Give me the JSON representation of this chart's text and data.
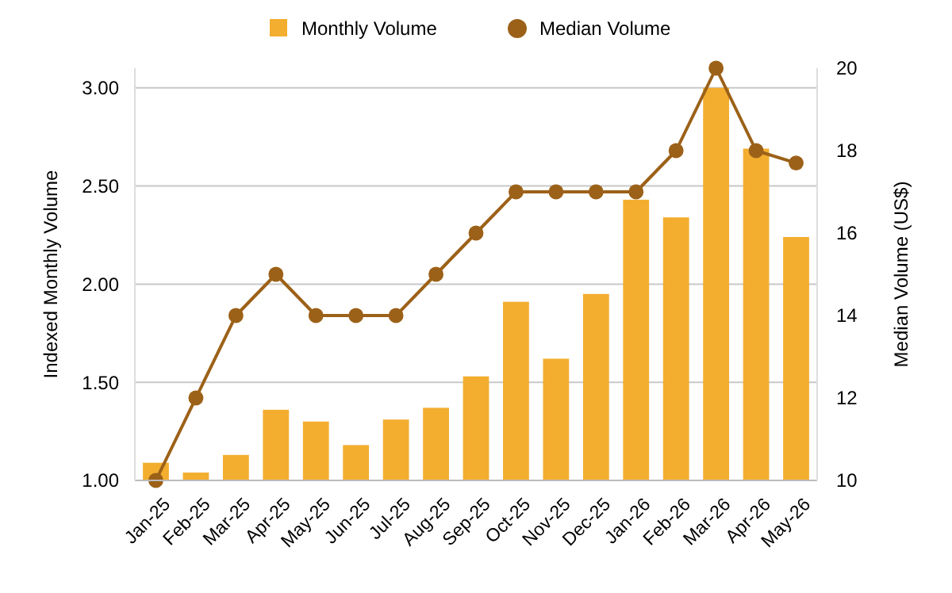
{
  "chart_data": {
    "type": "bar",
    "categories": [
      "Jan-25",
      "Feb-25",
      "Mar-25",
      "Apr-25",
      "May-25",
      "Jun-25",
      "Jul-25",
      "Aug-25",
      "Sep-25",
      "Oct-25",
      "Nov-25",
      "Dec-25",
      "Jan-26",
      "Feb-26",
      "Mar-26",
      "Apr-26",
      "May-26"
    ],
    "series": [
      {
        "name": "Monthly Volume",
        "color": "#f3ae2f",
        "values": [
          1.09,
          1.04,
          1.13,
          1.36,
          1.3,
          1.18,
          1.31,
          1.37,
          1.53,
          1.91,
          1.62,
          1.95,
          2.43,
          2.34,
          3.0,
          2.69,
          2.24
        ]
      },
      {
        "name": "Median Volume",
        "type": "line",
        "axis": "y2",
        "color": "#9c6118",
        "values": [
          10,
          12,
          14,
          15,
          14,
          14,
          14,
          15,
          16,
          17,
          17,
          17,
          17,
          18,
          20,
          18,
          17.7
        ]
      }
    ],
    "ylabel": "Indexed Monthly Volume",
    "y2label": "Median Volume (US$)",
    "ylim": [
      1,
      3.1
    ],
    "yticks": [
      {
        "value": 1,
        "label": "1.00"
      },
      {
        "value": 1.5,
        "label": "1.50"
      },
      {
        "value": 2,
        "label": "2.00"
      },
      {
        "value": 2.5,
        "label": "2.50"
      },
      {
        "value": 3,
        "label": "3.00"
      }
    ],
    "y2lim": [
      10,
      20
    ],
    "y2ticks": [
      10,
      12,
      14,
      16,
      18,
      20
    ],
    "grid": "y",
    "legend": "top",
    "marker": "circle"
  }
}
